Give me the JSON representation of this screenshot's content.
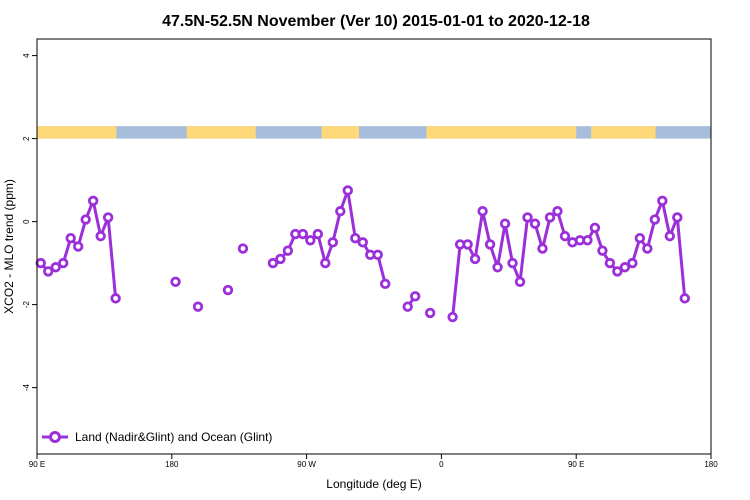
{
  "chart_data": {
    "type": "line",
    "title": "47.5N-52.5N November (Ver 10)   2015-01-01 to 2020-12-18",
    "xlabel": "Longitude (deg E)",
    "ylabel": "XCO2 - MLO trend (ppm)",
    "xlim": [
      90,
      540
    ],
    "ylim": [
      -5.6,
      4.4
    ],
    "x_ticks": [
      {
        "value": 90,
        "label": "90 E"
      },
      {
        "value": 180,
        "label": "180"
      },
      {
        "value": 270,
        "label": "90 W"
      },
      {
        "value": 360,
        "label": "0"
      },
      {
        "value": 450,
        "label": "90 E"
      },
      {
        "value": 540,
        "label": "180"
      }
    ],
    "y_ticks": [
      {
        "value": 4,
        "label": "4"
      },
      {
        "value": 2,
        "label": "2"
      },
      {
        "value": 0,
        "label": "0"
      },
      {
        "value": -2,
        "label": "-2"
      },
      {
        "value": -4,
        "label": "-4"
      }
    ],
    "grid": false,
    "legend_position": "bottom-left",
    "land_ocean_band": {
      "y_range": [
        2.0,
        2.3
      ],
      "land_color": "#ffd87a",
      "ocean_color": "#a6bddb",
      "land_segments": [
        [
          90,
          143
        ],
        [
          190,
          236
        ],
        [
          280,
          305
        ],
        [
          350,
          450
        ],
        [
          460,
          503
        ]
      ]
    },
    "series": [
      {
        "name": "Land (Nadir&Glint) and Ocean (Glint)",
        "color": "#9b30d9",
        "segments": [
          [
            [
              92.5,
              -1.0
            ],
            [
              97.5,
              -1.2
            ],
            [
              102.5,
              -1.1
            ],
            [
              107.5,
              -1.0
            ],
            [
              112.5,
              -0.4
            ],
            [
              117.5,
              -0.6
            ],
            [
              122.5,
              0.05
            ],
            [
              127.5,
              0.5
            ],
            [
              132.5,
              -0.35
            ],
            [
              137.5,
              0.1
            ],
            [
              142.5,
              -1.85
            ]
          ],
          [
            [
              182.5,
              -1.45
            ]
          ],
          [
            [
              197.5,
              -2.05
            ]
          ],
          [
            [
              217.5,
              -1.65
            ]
          ],
          [
            [
              227.5,
              -0.65
            ]
          ],
          [
            [
              247.5,
              -1.0
            ],
            [
              252.5,
              -0.9
            ],
            [
              257.5,
              -0.7
            ],
            [
              262.5,
              -0.3
            ],
            [
              267.5,
              -0.3
            ],
            [
              272.5,
              -0.45
            ],
            [
              277.5,
              -0.3
            ],
            [
              282.5,
              -1.0
            ],
            [
              287.5,
              -0.5
            ],
            [
              292.5,
              0.25
            ],
            [
              297.5,
              0.75
            ],
            [
              302.5,
              -0.4
            ],
            [
              307.5,
              -0.5
            ],
            [
              312.5,
              -0.8
            ],
            [
              317.5,
              -0.8
            ],
            [
              322.5,
              -1.5
            ]
          ],
          [
            [
              337.5,
              -2.05
            ],
            [
              342.5,
              -1.8
            ]
          ],
          [
            [
              352.5,
              -2.2
            ]
          ],
          [
            [
              367.5,
              -2.3
            ],
            [
              372.5,
              -0.55
            ],
            [
              377.5,
              -0.55
            ],
            [
              382.5,
              -0.9
            ],
            [
              387.5,
              0.25
            ],
            [
              392.5,
              -0.55
            ],
            [
              397.5,
              -1.1
            ],
            [
              402.5,
              -0.05
            ],
            [
              407.5,
              -1.0
            ],
            [
              412.5,
              -1.45
            ],
            [
              417.5,
              0.1
            ],
            [
              422.5,
              -0.05
            ],
            [
              427.5,
              -0.65
            ],
            [
              432.5,
              0.1
            ],
            [
              437.5,
              0.25
            ],
            [
              442.5,
              -0.35
            ],
            [
              447.5,
              -0.5
            ],
            [
              452.5,
              -0.45
            ],
            [
              457.5,
              -0.45
            ],
            [
              462.5,
              -0.15
            ],
            [
              467.5,
              -0.7
            ],
            [
              472.5,
              -1.0
            ],
            [
              477.5,
              -1.2
            ],
            [
              482.5,
              -1.1
            ],
            [
              487.5,
              -1.0
            ],
            [
              492.5,
              -0.4
            ],
            [
              497.5,
              -0.65
            ],
            [
              502.5,
              0.05
            ],
            [
              507.5,
              0.5
            ],
            [
              512.5,
              -0.35
            ],
            [
              517.5,
              0.1
            ],
            [
              522.5,
              -1.85
            ]
          ]
        ]
      }
    ]
  }
}
